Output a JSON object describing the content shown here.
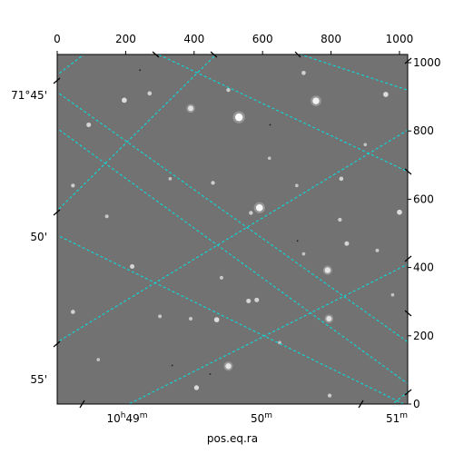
{
  "chart_data": {
    "type": "image",
    "title": "",
    "xlabel": "pos.eq.ra",
    "ylabel": "",
    "pixel_axes": {
      "x_ticks": [
        0,
        200,
        400,
        600,
        800,
        1000
      ],
      "y_ticks": [
        0,
        200,
        400,
        600,
        800,
        1000
      ],
      "xlim": [
        0,
        1024
      ],
      "ylim": [
        0,
        1024
      ]
    },
    "world_axes": {
      "ra_ticks": [
        {
          "label": "10h49m",
          "main": "10",
          "sup1": "h",
          "mid": "49",
          "sup2": "m"
        },
        {
          "label": "50m",
          "main": "50",
          "sup1": "m",
          "mid": "",
          "sup2": ""
        },
        {
          "label": "51m",
          "main": "51",
          "sup1": "m",
          "mid": "",
          "sup2": ""
        }
      ],
      "dec_ticks": [
        "71°45'",
        "50'",
        "55'"
      ]
    },
    "grid": true,
    "grid_color": "#00e5e5",
    "image_background": "#727272",
    "stars": [
      {
        "x": 531,
        "y": 840,
        "b": 1.0
      },
      {
        "x": 756,
        "y": 888,
        "b": 0.85
      },
      {
        "x": 591,
        "y": 575,
        "b": 0.9
      },
      {
        "x": 196,
        "y": 890,
        "b": 0.6
      },
      {
        "x": 390,
        "y": 866,
        "b": 0.65
      },
      {
        "x": 960,
        "y": 907,
        "b": 0.6
      },
      {
        "x": 1000,
        "y": 562,
        "b": 0.6
      },
      {
        "x": 790,
        "y": 392,
        "b": 0.7
      },
      {
        "x": 794,
        "y": 250,
        "b": 0.65
      },
      {
        "x": 500,
        "y": 111,
        "b": 0.7
      },
      {
        "x": 407,
        "y": 48,
        "b": 0.55
      },
      {
        "x": 466,
        "y": 247,
        "b": 0.6
      },
      {
        "x": 559,
        "y": 302,
        "b": 0.5
      },
      {
        "x": 583,
        "y": 305,
        "b": 0.5
      },
      {
        "x": 219,
        "y": 403,
        "b": 0.5
      },
      {
        "x": 92,
        "y": 818,
        "b": 0.5
      },
      {
        "x": 270,
        "y": 910,
        "b": 0.45
      },
      {
        "x": 720,
        "y": 970,
        "b": 0.45
      },
      {
        "x": 830,
        "y": 660,
        "b": 0.45
      },
      {
        "x": 826,
        "y": 540,
        "b": 0.4
      },
      {
        "x": 846,
        "y": 470,
        "b": 0.5
      },
      {
        "x": 455,
        "y": 648,
        "b": 0.4
      },
      {
        "x": 566,
        "y": 560,
        "b": 0.4
      },
      {
        "x": 46,
        "y": 640,
        "b": 0.4
      },
      {
        "x": 46,
        "y": 270,
        "b": 0.45
      },
      {
        "x": 145,
        "y": 550,
        "b": 0.35
      },
      {
        "x": 500,
        "y": 920,
        "b": 0.4
      },
      {
        "x": 480,
        "y": 370,
        "b": 0.35
      },
      {
        "x": 390,
        "y": 250,
        "b": 0.35
      },
      {
        "x": 300,
        "y": 257,
        "b": 0.35
      },
      {
        "x": 796,
        "y": 25,
        "b": 0.4
      },
      {
        "x": 935,
        "y": 450,
        "b": 0.35
      },
      {
        "x": 700,
        "y": 640,
        "b": 0.3
      },
      {
        "x": 720,
        "y": 440,
        "b": 0.3
      },
      {
        "x": 980,
        "y": 320,
        "b": 0.3
      },
      {
        "x": 620,
        "y": 720,
        "b": 0.3
      },
      {
        "x": 120,
        "y": 130,
        "b": 0.3
      },
      {
        "x": 650,
        "y": 180,
        "b": 0.3
      },
      {
        "x": 330,
        "y": 660,
        "b": 0.3
      },
      {
        "x": 900,
        "y": 760,
        "b": 0.3
      }
    ],
    "dark_specks": [
      {
        "x": 334,
        "y": 115
      },
      {
        "x": 445,
        "y": 90
      },
      {
        "x": 700,
        "y": 480
      },
      {
        "x": 620,
        "y": 820
      },
      {
        "x": 240,
        "y": 980
      }
    ]
  }
}
